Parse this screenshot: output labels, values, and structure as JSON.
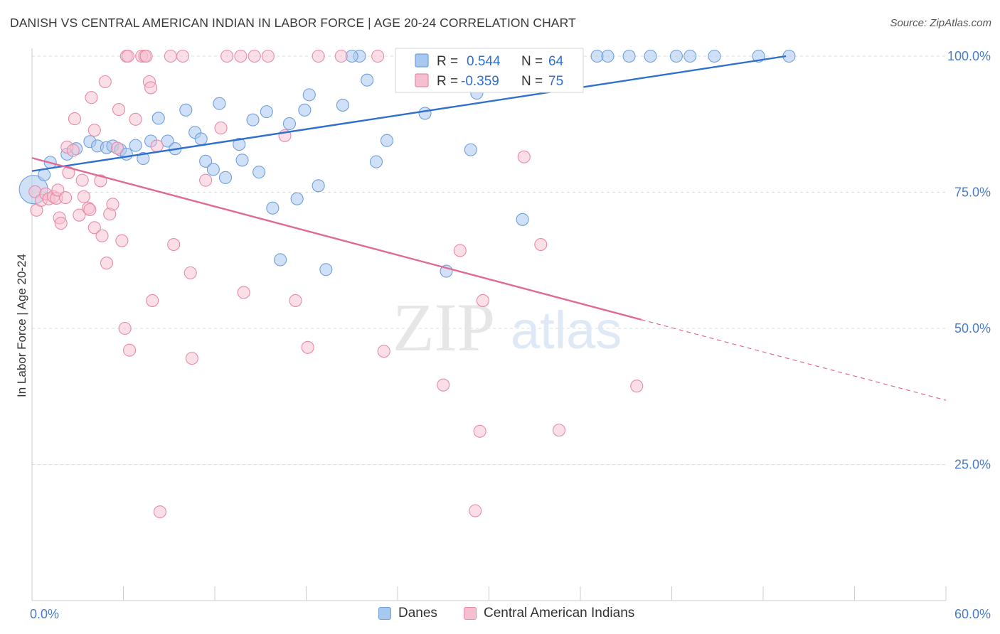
{
  "title": "DANISH VS CENTRAL AMERICAN INDIAN IN LABOR FORCE | AGE 20-24 CORRELATION CHART",
  "source": "Source: ZipAtlas.com",
  "watermark": {
    "zip": "ZIP",
    "atlas": "atlas"
  },
  "colors": {
    "danes_fill": "#a9c8f0",
    "danes_stroke": "#6f9fdc",
    "danes_line": "#2f6fd0",
    "cai_fill": "#f6bfd0",
    "cai_stroke": "#e88aa8",
    "cai_line": "#e06a94",
    "axis_label": "#4a7cc9",
    "grid": "#dddddd"
  },
  "stats_legend": {
    "rows": [
      {
        "r_label": "R =",
        "r_value": "0.544",
        "n_label": "N =",
        "n_value": "64"
      },
      {
        "r_label": "R =",
        "r_value": "-0.359",
        "n_label": "N =",
        "n_value": "75"
      }
    ]
  },
  "bottom_legend": {
    "danes": "Danes",
    "cai": "Central American Indians"
  },
  "chart_data": {
    "type": "scatter",
    "title": "DANISH VS CENTRAL AMERICAN INDIAN IN LABOR FORCE | AGE 20-24 CORRELATION CHART",
    "xlabel": "",
    "ylabel": "In Labor Force | Age 20-24",
    "xlim": [
      0,
      60
    ],
    "ylim": [
      0,
      102
    ],
    "x_tick_labels": [
      "0.0%",
      "60.0%"
    ],
    "y_ticks": [
      25,
      50,
      75,
      100
    ],
    "y_tick_labels": [
      "25.0%",
      "50.0%",
      "75.0%",
      "100.0%"
    ],
    "grid": true,
    "legend_position": "top-center",
    "series": [
      {
        "name": "Danes",
        "r": 0.544,
        "n": 64,
        "trend": {
          "x": [
            0,
            49.5
          ],
          "y": [
            78.9,
            100
          ]
        },
        "points": [
          [
            0.1,
            75.5,
            22
          ],
          [
            0.8,
            78.2,
            10
          ],
          [
            1.2,
            80.5,
            10
          ],
          [
            2.3,
            82.0,
            10
          ],
          [
            2.9,
            83.0,
            10
          ],
          [
            3.8,
            84.3,
            10
          ],
          [
            4.3,
            83.5,
            10
          ],
          [
            4.9,
            83.2,
            10
          ],
          [
            5.3,
            83.5,
            10
          ],
          [
            5.8,
            82.8,
            10
          ],
          [
            6.2,
            82.0,
            10
          ],
          [
            6.8,
            83.6,
            10
          ],
          [
            7.3,
            81.2,
            10
          ],
          [
            7.8,
            84.4,
            10
          ],
          [
            8.3,
            88.6,
            10
          ],
          [
            8.9,
            84.4,
            10
          ],
          [
            9.4,
            83.0,
            10
          ],
          [
            10.1,
            90.1,
            10
          ],
          [
            10.7,
            86.0,
            10
          ],
          [
            11.1,
            84.8,
            10
          ],
          [
            11.4,
            80.7,
            10
          ],
          [
            11.9,
            79.2,
            10
          ],
          [
            12.3,
            91.3,
            10
          ],
          [
            12.7,
            77.7,
            10
          ],
          [
            13.6,
            83.8,
            10
          ],
          [
            13.8,
            80.9,
            10
          ],
          [
            14.5,
            88.3,
            10
          ],
          [
            14.9,
            78.7,
            10
          ],
          [
            15.4,
            89.8,
            10
          ],
          [
            15.8,
            72.1,
            10
          ],
          [
            16.3,
            62.6,
            10
          ],
          [
            16.9,
            87.6,
            10
          ],
          [
            17.4,
            73.8,
            10
          ],
          [
            17.9,
            90.1,
            10
          ],
          [
            18.2,
            92.9,
            10
          ],
          [
            18.8,
            76.2,
            10
          ],
          [
            19.3,
            60.8,
            10
          ],
          [
            20.4,
            91.0,
            10
          ],
          [
            21.5,
            100,
            10
          ],
          [
            22.0,
            95.6,
            10
          ],
          [
            22.6,
            80.6,
            10
          ],
          [
            23.3,
            84.5,
            10
          ],
          [
            21.0,
            100,
            10
          ],
          [
            25.6,
            100,
            10
          ],
          [
            25.8,
            89.5,
            10
          ],
          [
            27.2,
            100,
            10
          ],
          [
            27.2,
            60.5,
            10
          ],
          [
            28.4,
            100,
            10
          ],
          [
            28.8,
            82.8,
            10
          ],
          [
            29.2,
            93.2,
            10
          ],
          [
            30.8,
            100,
            10
          ],
          [
            31.5,
            100,
            10
          ],
          [
            32.2,
            70.0,
            10
          ],
          [
            35.1,
            100,
            10
          ],
          [
            35.2,
            100,
            10
          ],
          [
            37.1,
            100,
            10
          ],
          [
            37.8,
            100,
            10
          ],
          [
            39.2,
            100,
            10
          ],
          [
            40.6,
            100,
            10
          ],
          [
            42.3,
            100,
            10
          ],
          [
            43.2,
            100,
            10
          ],
          [
            44.8,
            100,
            10
          ],
          [
            47.7,
            100,
            10
          ],
          [
            49.7,
            100,
            10
          ]
        ]
      },
      {
        "name": "Central American Indians",
        "r": -0.359,
        "n": 75,
        "trend": {
          "x": [
            0,
            40
          ],
          "y": [
            81.3,
            51.6
          ]
        },
        "trend_extension": {
          "x": [
            40,
            60
          ],
          "y": [
            51.6,
            36.8
          ]
        },
        "points": [
          [
            0.2,
            75.1,
            10
          ],
          [
            0.3,
            71.7,
            10
          ],
          [
            0.6,
            73.5,
            10
          ],
          [
            0.9,
            74.7,
            10
          ],
          [
            1.1,
            73.8,
            10
          ],
          [
            1.4,
            74.2,
            10
          ],
          [
            1.6,
            73.9,
            10
          ],
          [
            1.7,
            75.4,
            10
          ],
          [
            1.8,
            70.3,
            10
          ],
          [
            1.9,
            69.3,
            10
          ],
          [
            2.2,
            74.0,
            10
          ],
          [
            2.3,
            83.3,
            10
          ],
          [
            2.4,
            78.6,
            10
          ],
          [
            2.7,
            82.7,
            10
          ],
          [
            2.8,
            88.5,
            10
          ],
          [
            3.1,
            70.8,
            10
          ],
          [
            3.3,
            77.2,
            10
          ],
          [
            3.4,
            74.2,
            10
          ],
          [
            3.7,
            72.1,
            10
          ],
          [
            3.8,
            71.8,
            10
          ],
          [
            3.9,
            92.4,
            10
          ],
          [
            4.1,
            86.4,
            10
          ],
          [
            4.1,
            68.5,
            10
          ],
          [
            4.5,
            77.1,
            10
          ],
          [
            4.6,
            67.0,
            10
          ],
          [
            4.8,
            95.3,
            10
          ],
          [
            4.9,
            62.0,
            10
          ],
          [
            5.1,
            71.0,
            10
          ],
          [
            5.3,
            72.8,
            10
          ],
          [
            5.6,
            83.1,
            10
          ],
          [
            5.7,
            90.2,
            10
          ],
          [
            5.9,
            66.1,
            10
          ],
          [
            6.1,
            50.0,
            10
          ],
          [
            6.2,
            100,
            10
          ],
          [
            6.3,
            100,
            10
          ],
          [
            6.4,
            46.0,
            10
          ],
          [
            6.8,
            88.4,
            10
          ],
          [
            7.2,
            100,
            10
          ],
          [
            7.4,
            100,
            10
          ],
          [
            7.5,
            100,
            10
          ],
          [
            7.7,
            95.3,
            10
          ],
          [
            7.8,
            94.2,
            10
          ],
          [
            7.9,
            55.1,
            10
          ],
          [
            8.2,
            83.5,
            10
          ],
          [
            8.4,
            16.3,
            10
          ],
          [
            9.1,
            100,
            10
          ],
          [
            9.3,
            65.4,
            10
          ],
          [
            9.9,
            100,
            10
          ],
          [
            10.4,
            60.2,
            10
          ],
          [
            10.5,
            44.5,
            10
          ],
          [
            11.4,
            77.2,
            10
          ],
          [
            12.4,
            86.8,
            10
          ],
          [
            12.8,
            100,
            10
          ],
          [
            13.7,
            100,
            10
          ],
          [
            13.9,
            56.6,
            10
          ],
          [
            14.6,
            100,
            10
          ],
          [
            15.5,
            100,
            10
          ],
          [
            16.6,
            85.4,
            10
          ],
          [
            17.3,
            55.1,
            10
          ],
          [
            18.1,
            46.5,
            10
          ],
          [
            18.8,
            100,
            10
          ],
          [
            20.3,
            100,
            10
          ],
          [
            22.7,
            100,
            10
          ],
          [
            23.1,
            45.8,
            10
          ],
          [
            25.7,
            100,
            10
          ],
          [
            27.0,
            39.6,
            10
          ],
          [
            28.1,
            64.3,
            10
          ],
          [
            29.1,
            16.5,
            10
          ],
          [
            29.4,
            31.1,
            10
          ],
          [
            29.6,
            55.1,
            10
          ],
          [
            31.6,
            100,
            10
          ],
          [
            32.3,
            81.5,
            10
          ],
          [
            33.4,
            65.4,
            10
          ],
          [
            34.6,
            31.3,
            10
          ],
          [
            39.7,
            39.4,
            10
          ]
        ]
      }
    ]
  }
}
